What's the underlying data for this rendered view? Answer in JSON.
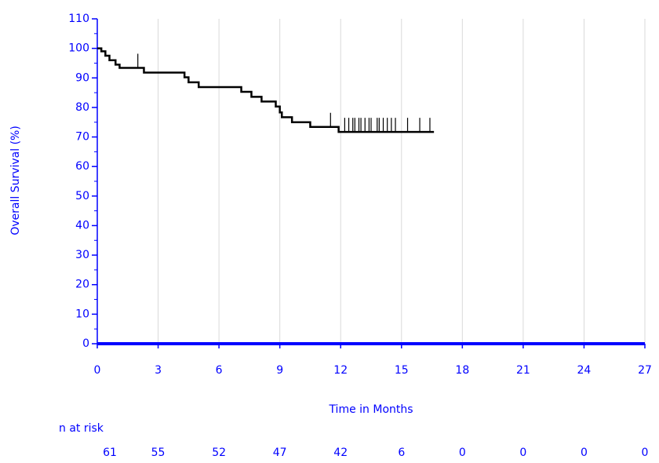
{
  "chart_data": {
    "type": "step",
    "x_label": "Time in Months",
    "y_label": "Overall Survival (%)",
    "xlim": [
      0,
      27
    ],
    "xticks": [
      0,
      3,
      6,
      9,
      12,
      15,
      18,
      21,
      24,
      27
    ],
    "ylim": [
      0,
      110
    ],
    "yticks": [
      0,
      10,
      20,
      30,
      40,
      50,
      60,
      70,
      80,
      90,
      100,
      110
    ],
    "grid": true,
    "series": [
      {
        "color": "#000000",
        "x": [
          0,
          0.2,
          0.4,
          0.6,
          0.9,
          1.1,
          2.3,
          4.3,
          4.5,
          5.0,
          7.1,
          7.6,
          8.1,
          8.8,
          9.0,
          9.1,
          9.6,
          10.5,
          11.9,
          16.6
        ],
        "values": [
          100,
          99,
          97.5,
          96,
          94.5,
          93.4,
          91.8,
          90.2,
          88.5,
          86.9,
          85.3,
          83.6,
          82.0,
          80.3,
          78.3,
          76.7,
          75.0,
          73.4,
          71.7,
          71.7
        ],
        "censor_x": [
          2.0,
          11.5,
          12.2,
          12.4,
          12.6,
          12.7,
          12.9,
          13.0,
          13.2,
          13.4,
          13.5,
          13.8,
          13.9,
          14.1,
          14.3,
          14.5,
          14.7,
          15.3,
          15.9,
          16.4
        ],
        "censor_values": [
          93.4,
          73.4,
          71.7,
          71.7,
          71.7,
          71.7,
          71.7,
          71.7,
          71.7,
          71.7,
          71.7,
          71.7,
          71.7,
          71.7,
          71.7,
          71.7,
          71.7,
          71.7,
          71.7,
          71.7
        ]
      }
    ],
    "risk_table": {
      "label": "n at risk",
      "counts": [
        61,
        55,
        52,
        47,
        42,
        6,
        0,
        0,
        0,
        0
      ]
    }
  }
}
